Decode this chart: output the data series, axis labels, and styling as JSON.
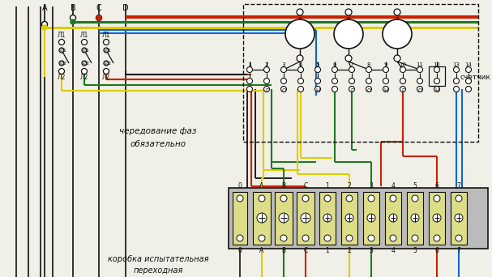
{
  "bg_color": "#f0f0e8",
  "c_black": "#111111",
  "c_red": "#cc2200",
  "c_green": "#227722",
  "c_yellow": "#ddcc00",
  "c_blue": "#1166cc",
  "c_brown": "#884422",
  "text_chered": "чередование фаз",
  "text_oby": "обязательно",
  "text_korobka1": "коробка испытательная",
  "text_korobka2": "переходная",
  "text_schetnik": "счетчик"
}
